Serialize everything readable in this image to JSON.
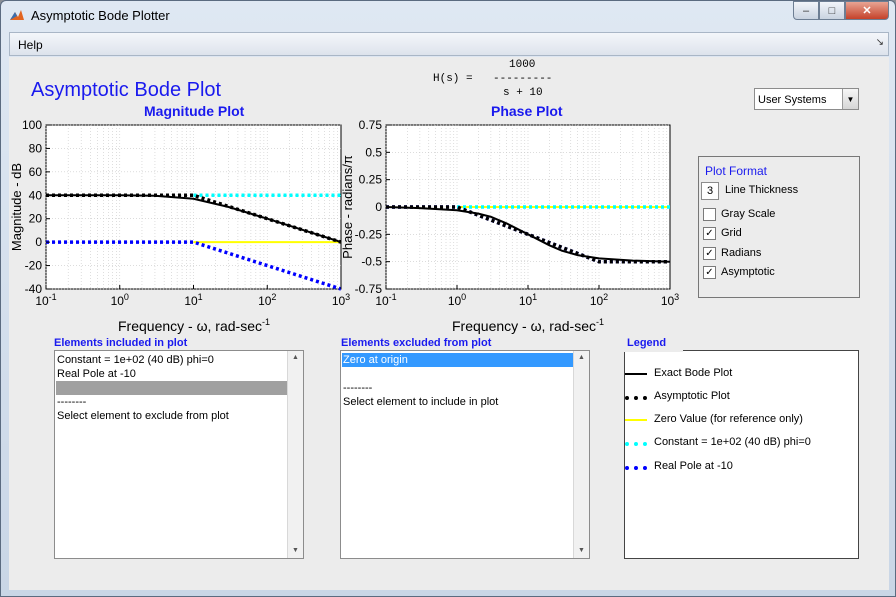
{
  "window": {
    "title": "Asymptotic Bode Plotter",
    "controls": {
      "minimize": "–",
      "maximize": "□",
      "close": "✕"
    }
  },
  "menu": {
    "help": "Help",
    "corner_glyph": "↘"
  },
  "header": {
    "title": "Asymptotic Bode Plot",
    "transfer_function": {
      "numerator": "1000",
      "lhs": "H(s) =",
      "bar": "---------",
      "denominator": "s + 10"
    }
  },
  "systems_dropdown": {
    "value": "User Systems",
    "arrow": "▼"
  },
  "magnitude_plot": {
    "title": "Magnitude Plot",
    "ylabel": "Magnitude - dB",
    "xlabel": "Frequency - ω, rad-sec",
    "xlabel_sup": "-1",
    "xtick_base": "10",
    "xtick_exps": [
      "-1",
      "0",
      "1",
      "2",
      "3"
    ],
    "ytick_labels": [
      "100",
      "80",
      "60",
      "40",
      "20",
      "0",
      "-20",
      "-40"
    ]
  },
  "phase_plot": {
    "title": "Phase Plot",
    "ylabel": "Phase - radians/π",
    "xlabel": "Frequency - ω, rad-sec",
    "xlabel_sup": "-1",
    "xtick_base": "10",
    "xtick_exps": [
      "-1",
      "0",
      "1",
      "2",
      "3"
    ],
    "ytick_labels": [
      "0.75",
      "0.5",
      "0.25",
      "0",
      "-0.25",
      "-0.5",
      "-0.75"
    ]
  },
  "chart_data": [
    {
      "type": "line",
      "title": "Magnitude Plot",
      "xlabel": "Frequency - ω, rad-sec-1",
      "ylabel": "Magnitude - dB",
      "xscale": "log",
      "xlim": [
        0.1,
        1000
      ],
      "ylim": [
        -40,
        100
      ],
      "grid": true,
      "series": [
        {
          "name": "Exact Bode Plot",
          "x": [
            0.1,
            1,
            3,
            10,
            30,
            100,
            300,
            1000
          ],
          "values": [
            40,
            40,
            39.6,
            37,
            30,
            20,
            10.5,
            0
          ]
        },
        {
          "name": "Asymptotic Plot",
          "x": [
            0.1,
            10,
            1000
          ],
          "values": [
            40,
            40,
            0
          ]
        },
        {
          "name": "Zero Value (for reference only)",
          "x": [
            10,
            1000
          ],
          "values": [
            0,
            0
          ]
        },
        {
          "name": "Constant = 1e+02 (40 dB) phi=0",
          "x": [
            10,
            1000
          ],
          "values": [
            40,
            40
          ]
        },
        {
          "name": "Real Pole at -10",
          "x": [
            0.1,
            10,
            1000
          ],
          "values": [
            0,
            0,
            -40
          ]
        }
      ]
    },
    {
      "type": "line",
      "title": "Phase Plot",
      "xlabel": "Frequency - ω, rad-sec-1",
      "ylabel": "Phase - radians/π",
      "xscale": "log",
      "xlim": [
        0.1,
        1000
      ],
      "ylim": [
        -0.75,
        0.75
      ],
      "grid": true,
      "series": [
        {
          "name": "Exact Bode Plot",
          "x": [
            0.1,
            0.3,
            1,
            2,
            3,
            5,
            10,
            20,
            30,
            50,
            100,
            300,
            1000
          ],
          "values": [
            0,
            -0.01,
            -0.03,
            -0.06,
            -0.09,
            -0.15,
            -0.25,
            -0.35,
            -0.4,
            -0.44,
            -0.47,
            -0.49,
            -0.5
          ]
        },
        {
          "name": "Asymptotic Plot",
          "x": [
            0.1,
            1,
            100,
            1000
          ],
          "values": [
            0,
            0,
            -0.5,
            -0.5
          ]
        },
        {
          "name": "Zero Value (for reference only)",
          "x": [
            1,
            1000
          ],
          "values": [
            0,
            0
          ]
        },
        {
          "name": "Constant = 1e+02 (40 dB) phi=0",
          "x": [
            1,
            1000
          ],
          "values": [
            0,
            0
          ]
        },
        {
          "name": "Real Pole at -10",
          "x": [
            0.1,
            1,
            100,
            1000
          ],
          "values": [
            0,
            0,
            -0.5,
            -0.5
          ]
        }
      ]
    }
  ],
  "plot_format": {
    "title": "Plot Format",
    "line_thickness_value": "3",
    "line_thickness_label": "Line Thickness",
    "options": [
      {
        "label": "Gray Scale",
        "checked": false
      },
      {
        "label": "Grid",
        "checked": true
      },
      {
        "label": "Radians",
        "checked": true
      },
      {
        "label": "Asymptotic",
        "checked": true
      }
    ],
    "check_glyph": "✓"
  },
  "included": {
    "label": "Elements included in plot",
    "items": [
      "Constant = 1e+02 (40 dB) phi=0",
      "Real Pole at -10",
      "",
      "--------",
      "Select element to exclude from plot"
    ]
  },
  "excluded": {
    "label": "Elements excluded from plot",
    "items": [
      "Zero at origin",
      "",
      "--------",
      "Select element to include in plot"
    ]
  },
  "scrollbar": {
    "up": "▲",
    "down": "▼"
  },
  "legend": {
    "title": "Legend",
    "entries": [
      {
        "label": "Exact Bode Plot",
        "color": "#000000",
        "style": "solid"
      },
      {
        "label": "Asymptotic Plot",
        "color": "#000000",
        "style": "dotted"
      },
      {
        "label": "Zero Value (for reference only)",
        "color": "#ffff00",
        "style": "solid"
      },
      {
        "label": "Constant = 1e+02 (40 dB) phi=0",
        "color": "#00ffff",
        "style": "dotted"
      },
      {
        "label": "Real Pole at -10",
        "color": "#0000ff",
        "style": "dotted"
      }
    ]
  },
  "colors": {
    "title_blue": "#1a1aee",
    "selected_blue": "#3399ff",
    "selected_gray": "#a0a0a0"
  }
}
